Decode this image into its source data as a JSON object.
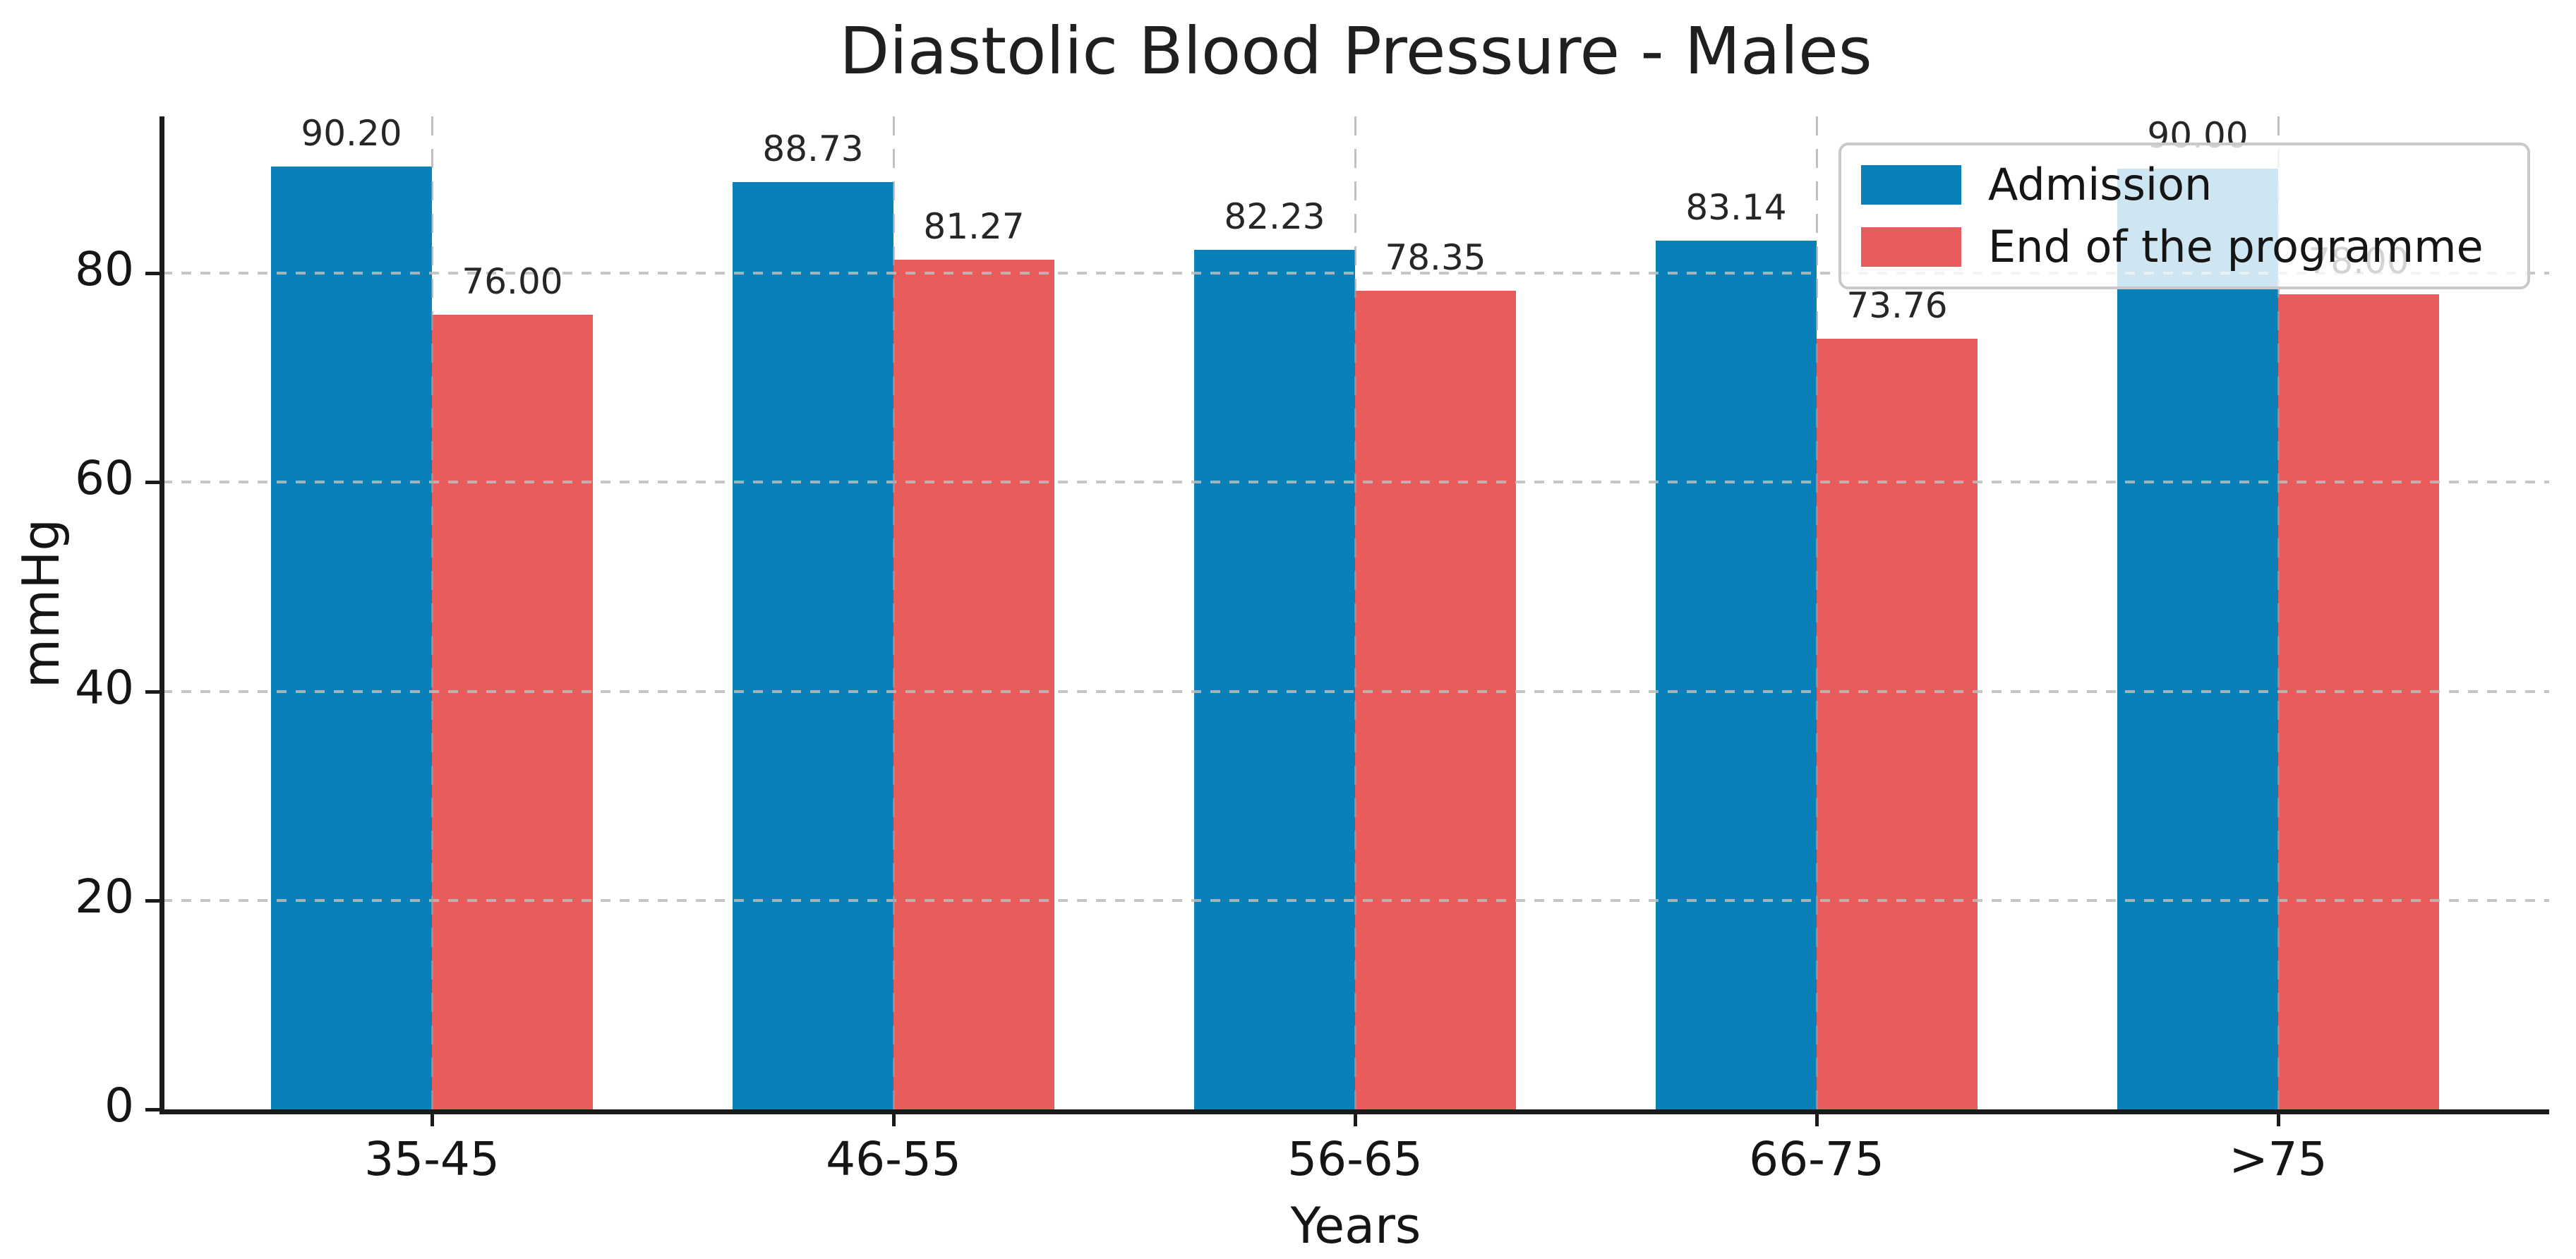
{
  "chart_data": {
    "type": "bar",
    "title": "Diastolic Blood Pressure - Males",
    "xlabel": "Years",
    "ylabel": "mmHg",
    "categories": [
      "35-45",
      "46-55",
      "56-65",
      "66-75",
      ">75"
    ],
    "series": [
      {
        "name": "Admission",
        "color": "#0a80b8",
        "values": [
          90.2,
          88.73,
          82.23,
          83.14,
          90.0
        ],
        "labels": [
          "90.20",
          "88.73",
          "82.23",
          "83.14",
          "90.00"
        ]
      },
      {
        "name": "End of the programme",
        "color": "#e95c5c",
        "values": [
          76.0,
          81.27,
          78.35,
          73.76,
          78.0
        ],
        "labels": [
          "76.00",
          "81.27",
          "78.35",
          "73.76",
          "78.00"
        ]
      }
    ],
    "ylim": [
      0,
      95
    ],
    "yticks": [
      0,
      20,
      40,
      60,
      80
    ],
    "grid": "dashed horizontal and vertical",
    "legend_position": "upper right"
  }
}
